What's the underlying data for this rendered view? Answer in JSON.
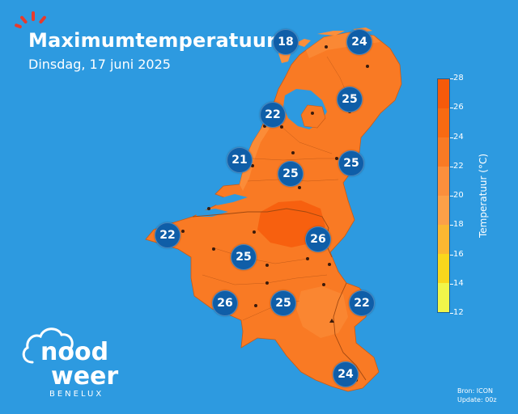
{
  "header": {
    "title": "Maximumtemperatuur",
    "subtitle": "Dinsdag, 17 juni 2025"
  },
  "logo": {
    "line1": "nood",
    "line2": "weer",
    "tagline": "BENELUX"
  },
  "legend": {
    "title": "Temperatuur (°C)",
    "min": 12,
    "max": 28,
    "ticks": [
      "28",
      "26",
      "24",
      "22",
      "20",
      "18",
      "16",
      "14",
      "12"
    ],
    "colors": [
      "#f0f54a",
      "#f9d71c",
      "#fbb731",
      "#fca048",
      "#fb8f3c",
      "#f97a24",
      "#f86a12",
      "#f65a0a"
    ]
  },
  "stations": [
    {
      "value": "18",
      "temp": 18
    },
    {
      "value": "24",
      "temp": 24
    },
    {
      "value": "25",
      "temp": 25
    },
    {
      "value": "22",
      "temp": 22
    },
    {
      "value": "21",
      "temp": 21
    },
    {
      "value": "25",
      "temp": 25
    },
    {
      "value": "25",
      "temp": 25
    },
    {
      "value": "22",
      "temp": 22
    },
    {
      "value": "26",
      "temp": 26
    },
    {
      "value": "25",
      "temp": 25
    },
    {
      "value": "26",
      "temp": 26
    },
    {
      "value": "25",
      "temp": 25
    },
    {
      "value": "22",
      "temp": 22
    },
    {
      "value": "24",
      "temp": 24
    }
  ],
  "source": {
    "line1": "Bron: ICON",
    "line2": "Update: 00z"
  },
  "colors": {
    "sea": "#2d9ae0",
    "land": "#f97a24",
    "badge": "#0f5ea8"
  }
}
